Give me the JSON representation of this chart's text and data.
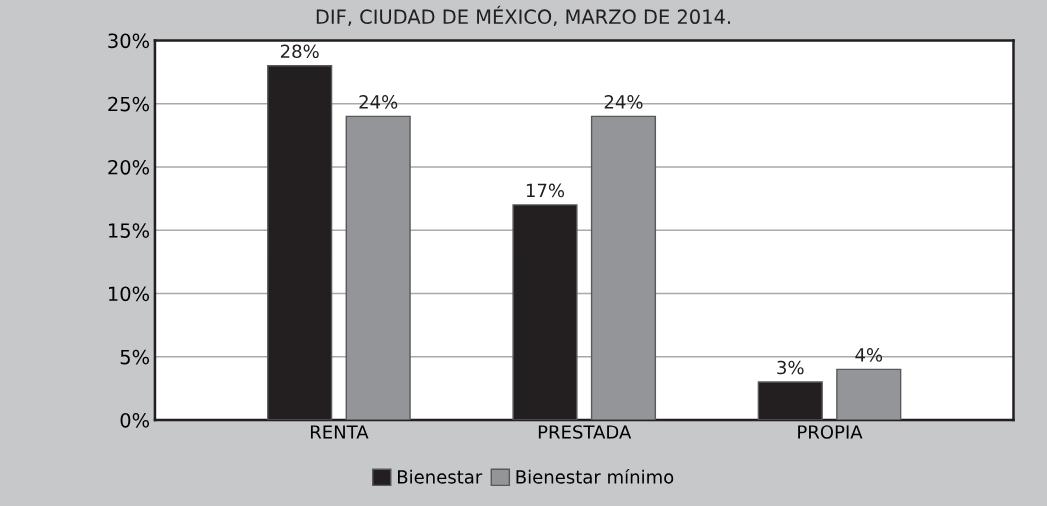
{
  "chart_data": {
    "type": "bar",
    "title": "DIF, CIUDAD DE MÉXICO, MARZO DE 2014.",
    "categories": [
      "RENTA",
      "PRESTADA",
      "PROPIA"
    ],
    "series": [
      {
        "name": "Bienestar",
        "color": "#231f20",
        "values": [
          28,
          17,
          3
        ],
        "value_labels": [
          "28%",
          "17%",
          "3%"
        ]
      },
      {
        "name": "Bienestar mínimo",
        "color": "#939598",
        "values": [
          24,
          24,
          4
        ],
        "value_labels": [
          "24%",
          "24%",
          "4%"
        ]
      }
    ],
    "ylim": [
      0,
      30
    ],
    "yticks": [
      {
        "value": 0,
        "label": "0%"
      },
      {
        "value": 5,
        "label": "5%"
      },
      {
        "value": 10,
        "label": "10%"
      },
      {
        "value": 15,
        "label": "15%"
      },
      {
        "value": 20,
        "label": "20%"
      },
      {
        "value": 25,
        "label": "25%"
      },
      {
        "value": 30,
        "label": "30%"
      }
    ],
    "grid": "y",
    "legend": "bottom"
  }
}
